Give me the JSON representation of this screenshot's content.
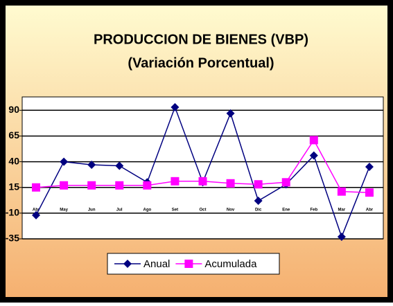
{
  "chart_data": {
    "type": "line",
    "title": "PRODUCCION DE BIENES (VBP)",
    "subtitle": "(Variación Porcentual)",
    "categories": [
      "Abr",
      "May",
      "Jun",
      "Jul",
      "Ago",
      "Set",
      "Oct",
      "Nov",
      "Dic",
      "Ene",
      "Feb",
      "Mar",
      "Abr"
    ],
    "series": [
      {
        "name": "Anual",
        "color": "#000080",
        "marker": "diamond",
        "values": [
          -12,
          40,
          37,
          36,
          20,
          93,
          20,
          87,
          2,
          18,
          46,
          -33,
          35
        ]
      },
      {
        "name": "Acumulada",
        "color": "#ff00ff",
        "marker": "square",
        "values": [
          15,
          17,
          17,
          17,
          17,
          21,
          21,
          19,
          18,
          20,
          61,
          11,
          10
        ]
      }
    ],
    "ylim": [
      -35,
      103
    ],
    "yticks": [
      -35,
      -10,
      15,
      40,
      65,
      90
    ],
    "grid": true,
    "legend": "bottom"
  }
}
